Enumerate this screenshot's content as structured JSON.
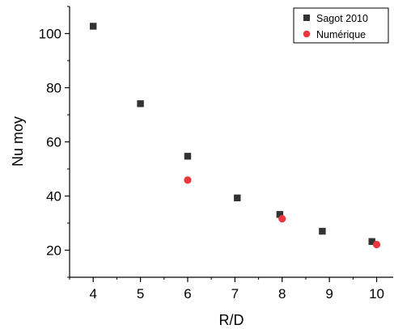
{
  "chart_data": {
    "type": "scatter",
    "xlabel": "R/D",
    "ylabel": "Nu moy",
    "xlim": [
      3.5,
      10.35
    ],
    "ylim": [
      10,
      110
    ],
    "xticks": [
      4,
      5,
      6,
      7,
      8,
      9,
      10
    ],
    "yticks": [
      20,
      40,
      60,
      80,
      100
    ],
    "grid": false,
    "legend_position": "top-right",
    "series": [
      {
        "name": "Sagot 2010",
        "marker": "square",
        "color": "#333333",
        "x": [
          4,
          5,
          6,
          7.05,
          7.95,
          8.85,
          9.9
        ],
        "y": [
          102.7,
          74.1,
          54.7,
          39.3,
          33.2,
          27.0,
          23.2
        ]
      },
      {
        "name": "Numérique",
        "marker": "circle",
        "color": "#e8383d",
        "x": [
          6,
          8,
          10
        ],
        "y": [
          45.9,
          31.6,
          22.1
        ]
      }
    ]
  }
}
